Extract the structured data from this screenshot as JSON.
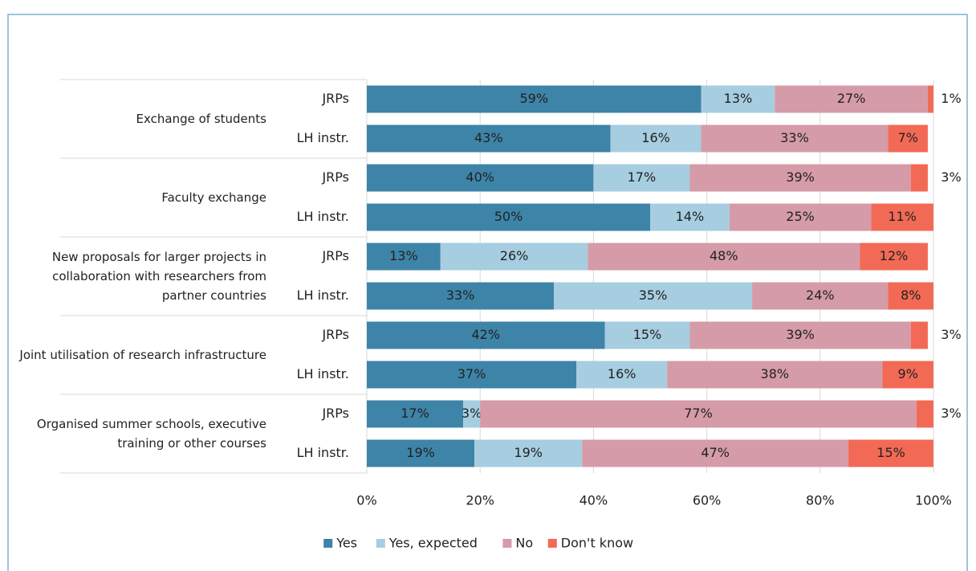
{
  "chart_data": {
    "type": "stacked_bar_horizontal",
    "groups": [
      "Exchange of students",
      "Faculty exchange",
      "New proposals for larger projects in collaboration with researchers from partner countries",
      "Joint utilisation of research infrastructure",
      "Organised summer schools, executive training or other courses"
    ],
    "categories": [
      "JRPs",
      "LH instr.",
      "JRPs",
      "LH instr.",
      "JRPs",
      "LH instr.",
      "JRPs",
      "LH instr.",
      "JRPs",
      "LH instr."
    ],
    "series": [
      {
        "name": "Yes",
        "color": "#3d84a8",
        "values": [
          59,
          43,
          40,
          50,
          13,
          33,
          42,
          37,
          17,
          19
        ],
        "value_labels": [
          "59%",
          "43%",
          "40%",
          "50%",
          "13%",
          "33%",
          "42%",
          "37%",
          "17%",
          "19%"
        ]
      },
      {
        "name": "Yes, expected",
        "color": "#a6cde0",
        "values": [
          13,
          16,
          17,
          14,
          26,
          35,
          15,
          16,
          3,
          19
        ],
        "value_labels": [
          "13%",
          "16%",
          "17%",
          "14%",
          "26%",
          "35%",
          "15%",
          "16%",
          "3%",
          "19%"
        ]
      },
      {
        "name": "No",
        "color": "#d59ba8",
        "values": [
          27,
          33,
          39,
          25,
          48,
          24,
          39,
          38,
          77,
          47
        ],
        "value_labels": [
          "27%",
          "33%",
          "39%",
          "25%",
          "48%",
          "24%",
          "39%",
          "38%",
          "77%",
          "47%"
        ]
      },
      {
        "name": "Don't know",
        "color": "#f26a55",
        "values": [
          1,
          7,
          3,
          11,
          12,
          8,
          3,
          9,
          3,
          15
        ],
        "value_labels": [
          "1%",
          "7%",
          "3%",
          "11%",
          "12%",
          "8%",
          "3%",
          "9%",
          "3%",
          "15%"
        ]
      }
    ],
    "xlim": [
      0,
      100
    ],
    "xticks": [
      {
        "value": 0,
        "label": "0%"
      },
      {
        "value": 20,
        "label": "20%"
      },
      {
        "value": 40,
        "label": "40%"
      },
      {
        "value": 60,
        "label": "60%"
      },
      {
        "value": 80,
        "label": "80%"
      },
      {
        "value": 100,
        "label": "100%"
      }
    ],
    "grid": true,
    "legend": "bottom"
  }
}
